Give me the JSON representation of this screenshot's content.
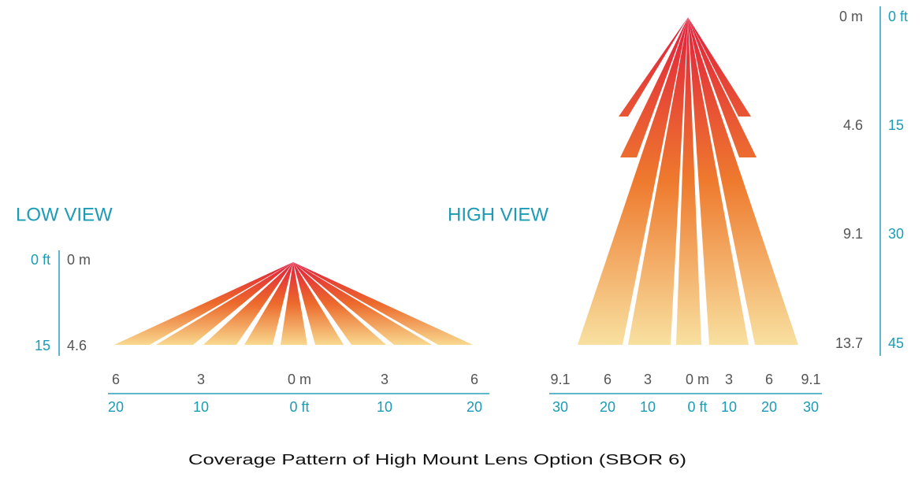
{
  "title": "Coverage Pattern of High Mount Lens Option (SBOR 6)",
  "low_view": {
    "label": "LOW VIEW",
    "depth_ft": [
      "0 ft",
      "15"
    ],
    "depth_m": [
      "0 m",
      "4.6"
    ],
    "width_m": [
      "6",
      "3",
      "0 m",
      "3",
      "6"
    ],
    "width_ft": [
      "20",
      "10",
      "0 ft",
      "10",
      "20"
    ]
  },
  "high_view": {
    "label": "HIGH VIEW",
    "depth_m": [
      "0 m",
      "4.6",
      "9.1",
      "13.7"
    ],
    "depth_ft": [
      "0 ft",
      "15",
      "30",
      "45"
    ],
    "width_m": [
      "9.1",
      "6",
      "3",
      "0 m",
      "3",
      "6",
      "9.1"
    ],
    "width_ft": [
      "30",
      "20",
      "10",
      "0 ft",
      "10",
      "20",
      "30"
    ]
  }
}
